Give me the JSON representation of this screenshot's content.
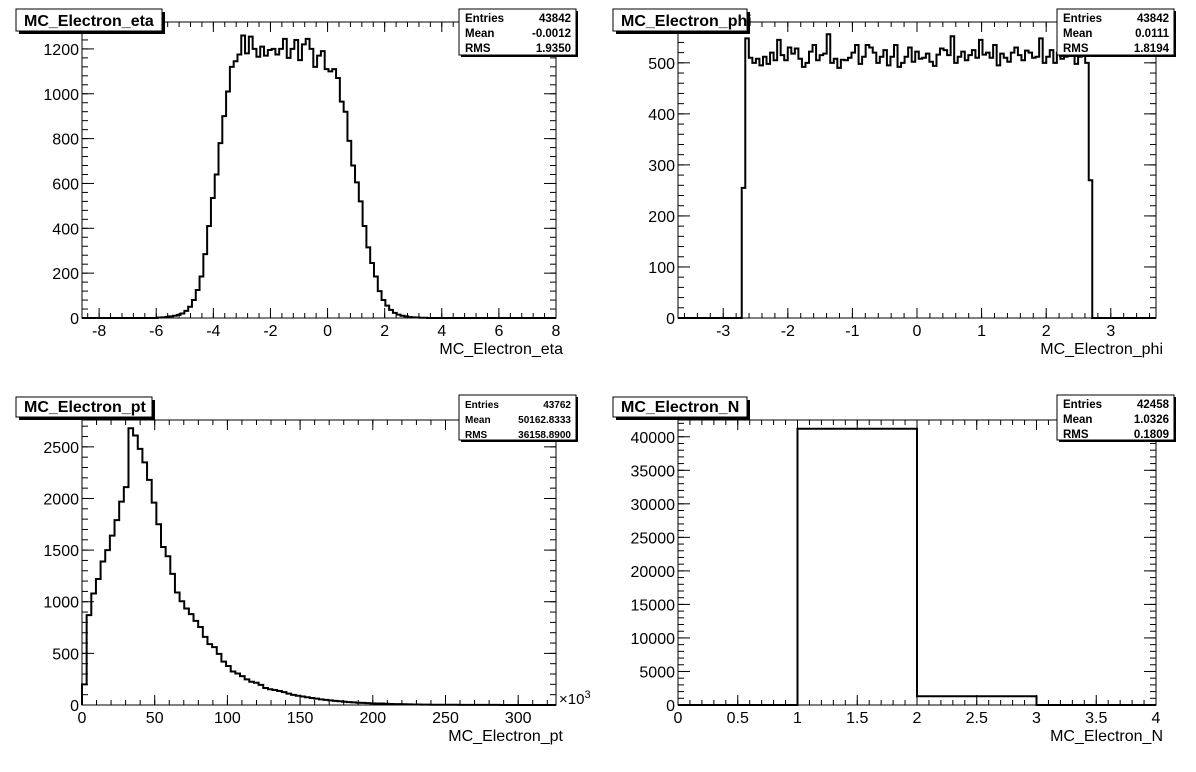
{
  "chart_data": [
    {
      "type": "histogram",
      "title": "MC_Electron_eta",
      "xlabel": "MC_Electron_eta",
      "ylabel": "",
      "xlim": [
        -8.6,
        8
      ],
      "ylim": [
        0,
        1320
      ],
      "xticks": [
        -8,
        -6,
        -4,
        -2,
        0,
        2,
        4,
        6,
        8
      ],
      "xtick_labels": [
        "-8",
        "-6",
        "-4",
        "-2",
        "0",
        "2",
        "4",
        "6",
        "8"
      ],
      "yticks": [
        0,
        200,
        400,
        600,
        800,
        1000,
        1200
      ],
      "ytick_labels": [
        "0",
        "200",
        "400",
        "600",
        "800",
        "1000",
        "1200"
      ],
      "bin_edges": [
        -8.6,
        8
      ],
      "values": [
        0,
        0,
        0,
        0,
        0,
        0,
        0,
        0,
        0,
        0,
        0,
        0,
        0,
        0,
        0,
        0,
        0,
        0,
        0,
        0,
        2,
        3,
        5,
        7,
        10,
        14,
        20,
        32,
        50,
        80,
        125,
        185,
        285,
        410,
        535,
        640,
        780,
        900,
        1010,
        1120,
        1145,
        1175,
        1260,
        1180,
        1255,
        1200,
        1165,
        1210,
        1170,
        1195,
        1200,
        1175,
        1200,
        1245,
        1160,
        1200,
        1240,
        1150,
        1220,
        1245,
        1200,
        1120,
        1170,
        1190,
        1110,
        1100,
        1110,
        1070,
        965,
        920,
        790,
        680,
        605,
        520,
        410,
        315,
        245,
        185,
        120,
        80,
        55,
        36,
        23,
        15,
        10,
        7,
        4,
        3,
        2,
        1,
        1,
        0,
        0,
        0,
        0,
        0,
        0,
        0,
        0,
        0,
        0,
        0,
        0,
        0,
        0,
        0,
        0,
        0,
        0,
        0,
        0,
        0,
        0,
        0,
        0,
        0,
        0,
        0,
        0,
        0,
        0,
        0,
        0,
        0,
        0
      ],
      "stats": {
        "entries_label": "Entries",
        "entries": "43842",
        "mean_label": "Mean",
        "mean": "-0.0012",
        "rms_label": "RMS",
        "rms": "1.9350"
      }
    },
    {
      "type": "histogram",
      "title": "MC_Electron_phi",
      "xlabel": "MC_Electron_phi",
      "ylabel": "",
      "xlim": [
        -3.7,
        3.7
      ],
      "ylim": [
        0,
        580
      ],
      "xticks": [
        -3,
        -2,
        -1,
        0,
        1,
        2,
        3
      ],
      "xtick_labels": [
        "-3",
        "-2",
        "-1",
        "0",
        "1",
        "2",
        "3"
      ],
      "yticks": [
        0,
        100,
        200,
        300,
        400,
        500
      ],
      "ytick_labels": [
        "0",
        "100",
        "200",
        "300",
        "400",
        "500"
      ],
      "bin_edges": [
        -3.7,
        3.7
      ],
      "values": [
        0,
        0,
        0,
        0,
        0,
        0,
        0,
        0,
        0,
        0,
        0,
        0,
        0,
        0,
        0,
        0,
        0,
        0,
        255,
        548,
        510,
        500,
        508,
        495,
        512,
        498,
        520,
        505,
        545,
        515,
        505,
        530,
        518,
        528,
        508,
        492,
        500,
        522,
        535,
        505,
        515,
        518,
        556,
        500,
        508,
        490,
        506,
        505,
        510,
        520,
        535,
        498,
        512,
        535,
        530,
        520,
        500,
        512,
        525,
        495,
        512,
        535,
        492,
        500,
        512,
        530,
        502,
        522,
        508,
        510,
        518,
        502,
        494,
        516,
        528,
        525,
        515,
        552,
        500,
        512,
        522,
        505,
        515,
        525,
        510,
        545,
        516,
        520,
        510,
        535,
        495,
        518,
        510,
        502,
        520,
        530,
        515,
        505,
        524,
        520,
        510,
        512,
        548,
        500,
        512,
        525,
        500,
        520,
        508,
        512,
        535,
        520,
        498,
        512,
        525,
        500,
        270,
        0,
        0,
        0,
        0,
        0,
        0,
        0,
        0,
        0,
        0,
        0,
        0,
        0,
        0,
        0,
        0,
        0,
        0
      ],
      "stats": {
        "entries_label": "Entries",
        "entries": "43842",
        "mean_label": "Mean",
        "mean": "0.0111",
        "rms_label": "RMS",
        "rms": "1.8194"
      }
    },
    {
      "type": "histogram",
      "title": "MC_Electron_pt",
      "xlabel": "MC_Electron_pt",
      "ylabel": "",
      "exponent": "×10",
      "exponent_power": "3",
      "xlim": [
        0,
        326
      ],
      "ylim": [
        0,
        2760
      ],
      "xticks": [
        0,
        50,
        100,
        150,
        200,
        250,
        300
      ],
      "xtick_labels": [
        "0",
        "50",
        "100",
        "150",
        "200",
        "250",
        "300"
      ],
      "yticks": [
        0,
        500,
        1000,
        1500,
        2000,
        2500
      ],
      "ytick_labels": [
        "0",
        "500",
        "1000",
        "1500",
        "2000",
        "2500"
      ],
      "bin_edges": [
        0,
        326
      ],
      "values": [
        200,
        870,
        1080,
        1220,
        1390,
        1500,
        1640,
        1790,
        1970,
        2110,
        2680,
        2610,
        2480,
        2350,
        2180,
        1960,
        1750,
        1530,
        1440,
        1270,
        1090,
        1005,
        935,
        880,
        815,
        755,
        660,
        590,
        560,
        495,
        420,
        378,
        325,
        305,
        280,
        248,
        225,
        215,
        195,
        165,
        152,
        145,
        135,
        125,
        110,
        98,
        90,
        82,
        75,
        68,
        62,
        55,
        50,
        45,
        40,
        36,
        32,
        28,
        25,
        22,
        20,
        18,
        16,
        15,
        14,
        12,
        10,
        9,
        8,
        7,
        6,
        5,
        5,
        4,
        4,
        3,
        3,
        2,
        2,
        2,
        2,
        1,
        1,
        1,
        1,
        1,
        1,
        1,
        1,
        1,
        0,
        0,
        0,
        0,
        0,
        0,
        0,
        0,
        0,
        0,
        0,
        0
      ],
      "stats": {
        "entries_label": "Entries",
        "entries": "43762",
        "mean_label": "Mean",
        "mean": "50162.8333",
        "rms_label": "RMS",
        "rms": "36158.8900"
      }
    },
    {
      "type": "histogram",
      "title": "MC_Electron_N",
      "xlabel": "MC_Electron_N",
      "ylabel": "",
      "xlim": [
        0,
        4
      ],
      "ylim": [
        0,
        42500
      ],
      "xticks": [
        0,
        0.5,
        1,
        1.5,
        2,
        2.5,
        3,
        3.5,
        4
      ],
      "xtick_labels": [
        "0",
        "0.5",
        "1",
        "1.5",
        "2",
        "2.5",
        "3",
        "3.5",
        "4"
      ],
      "yticks": [
        0,
        5000,
        10000,
        15000,
        20000,
        25000,
        30000,
        35000,
        40000
      ],
      "ytick_labels": [
        "0",
        "5000",
        "10000",
        "15000",
        "20000",
        "25000",
        "30000",
        "35000",
        "40000"
      ],
      "bin_edges": [
        0,
        4
      ],
      "values": [
        0,
        41200,
        1300,
        0
      ],
      "stats": {
        "entries_label": "Entries",
        "entries": "42458",
        "mean_label": "Mean",
        "mean": "1.0326",
        "rms_label": "RMS",
        "rms": "0.1809"
      }
    }
  ]
}
